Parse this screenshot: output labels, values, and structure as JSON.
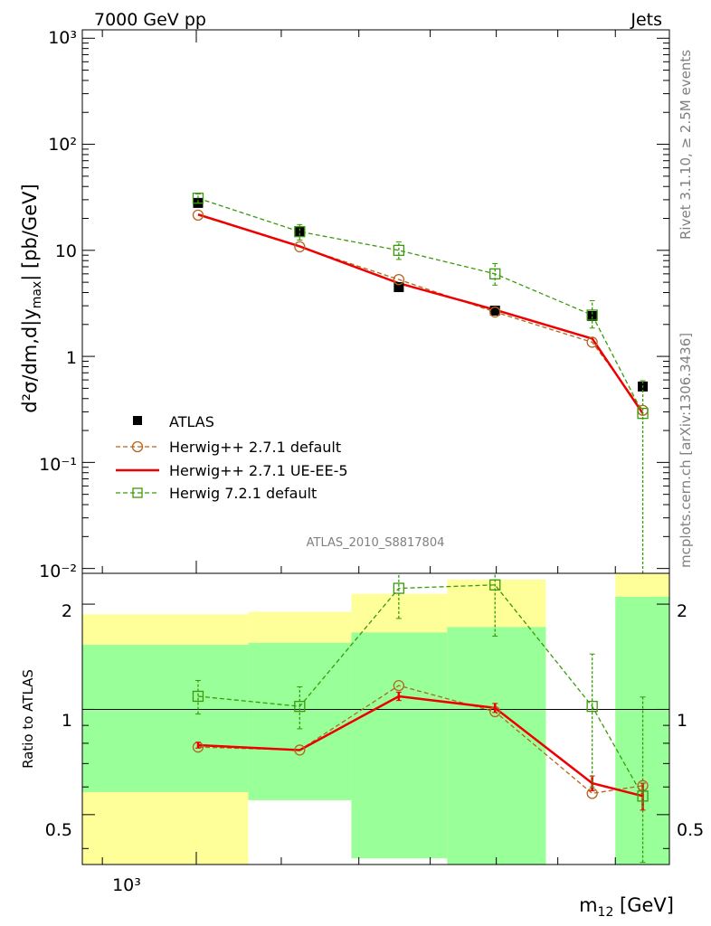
{
  "header": {
    "left": "7000 GeV pp",
    "right": "Jets"
  },
  "side": {
    "rivet": "Rivet 3.1.10, ≥ 2.5M events",
    "mcplots": "mcplots.cern.ch [arXiv:1306.3436]"
  },
  "watermark": "ATLAS_2010_S8817804",
  "top_ylabel": {
    "main": "d²σ/dm,d|y",
    "sub": "max",
    "tail": "| [pb/GeV]"
  },
  "bottom_ylabel": "Ratio to ATLAS",
  "xlabel": {
    "main": "m",
    "sub": "12",
    "tail": " [GeV]"
  },
  "top_ticks": [
    "10³",
    "10²",
    "10",
    "1",
    "10⁻¹",
    "10⁻²"
  ],
  "ratio_ticks": [
    "2",
    "1",
    "0.5"
  ],
  "x_tick": "10³",
  "legend": [
    {
      "label": "ATLAS"
    },
    {
      "label": "Herwig++ 2.7.1 default"
    },
    {
      "label": "Herwig++ 2.7.1 UE-EE-5"
    },
    {
      "label": "Herwig 7.2.1 default"
    }
  ],
  "colors": {
    "data": "#000000",
    "hpp_default": "#b5651d",
    "hpp_ue": "#ee0000",
    "h7": "#3a9a0a",
    "band_yellow": "#ffff99",
    "band_green": "#99ff99"
  },
  "chart_data": [
    {
      "type": "scatter",
      "panel": "main",
      "xscale": "log",
      "yscale": "log",
      "xlim": [
        880,
        1700
      ],
      "ylim": [
        0.009,
        1200
      ],
      "x": [
        1002,
        1123,
        1255,
        1398,
        1559,
        1650
      ],
      "series": [
        {
          "name": "ATLAS",
          "values": [
            28,
            15,
            4.5,
            2.7,
            2.4,
            0.52
          ]
        },
        {
          "name": "Herwig++ 2.7.1 default",
          "values": [
            21.5,
            10.8,
            5.3,
            2.62,
            1.36,
            0.31
          ],
          "err_lo": [
            0,
            0,
            0,
            0,
            0,
            0
          ],
          "err_hi": [
            0,
            0,
            0,
            0,
            0,
            0
          ]
        },
        {
          "name": "Herwig++ 2.7.1 UE-EE-5",
          "values": [
            21.8,
            10.9,
            4.9,
            2.75,
            1.47,
            0.29
          ],
          "err_lo": [
            0,
            0,
            0,
            0,
            0,
            0
          ],
          "err_hi": [
            0,
            0,
            0,
            0,
            0,
            0
          ]
        },
        {
          "name": "Herwig 7.2.1 default",
          "values": [
            31,
            15,
            10,
            6.0,
            2.45,
            0.29
          ],
          "err_lo": [
            3,
            2.5,
            1.8,
            1.3,
            0.6,
            0.285
          ],
          "err_hi": [
            3,
            2.5,
            2.0,
            1.5,
            0.9,
            0.3
          ]
        }
      ]
    },
    {
      "type": "scatter",
      "panel": "ratio",
      "xscale": "log",
      "yscale": "log",
      "xlim": [
        880,
        1700
      ],
      "ylim": [
        0.36,
        2.45
      ],
      "reference": 1,
      "bands": [
        {
          "x0": 880,
          "x1": 1060,
          "yellow": [
            0.35,
            1.87
          ],
          "green": [
            0.58,
            1.53
          ]
        },
        {
          "x0": 1060,
          "x1": 1190,
          "yellow": [
            0.55,
            1.9
          ],
          "green": [
            0.55,
            1.55
          ]
        },
        {
          "x0": 1190,
          "x1": 1325,
          "yellow": [
            0.375,
            2.14
          ],
          "green": [
            0.375,
            1.66
          ]
        },
        {
          "x0": 1325,
          "x1": 1480,
          "yellow": [
            0.36,
            2.35
          ],
          "green": [
            0.36,
            1.72
          ]
        },
        {
          "x0": 1600,
          "x1": 1700,
          "yellow": [
            0.36,
            2.45
          ],
          "green": [
            0.36,
            2.1
          ]
        }
      ],
      "x": [
        1002,
        1123,
        1255,
        1398,
        1559,
        1650
      ],
      "series": [
        {
          "name": "Herwig++ 2.7.1 default",
          "values": [
            0.78,
            0.765,
            1.17,
            0.985,
            0.575,
            0.605
          ]
        },
        {
          "name": "Herwig++ 2.7.1 UE-EE-5",
          "values": [
            0.79,
            0.765,
            1.09,
            1.01,
            0.615,
            0.565
          ],
          "err_lo": [
            0.015,
            0,
            0.03,
            0.03,
            0.03,
            0.05
          ],
          "err_hi": [
            0.015,
            0,
            0.03,
            0.03,
            0.03,
            0.05
          ]
        },
        {
          "name": "Herwig 7.2.1 default",
          "values": [
            1.09,
            1.02,
            2.22,
            2.27,
            1.02,
            0.565
          ],
          "err_lo": [
            0.12,
            0.14,
            0.4,
            0.65,
            0.42,
            0.2
          ],
          "err_hi": [
            0.12,
            0.14,
            0.4,
            0.65,
            0.42,
            0.52
          ]
        }
      ]
    }
  ]
}
